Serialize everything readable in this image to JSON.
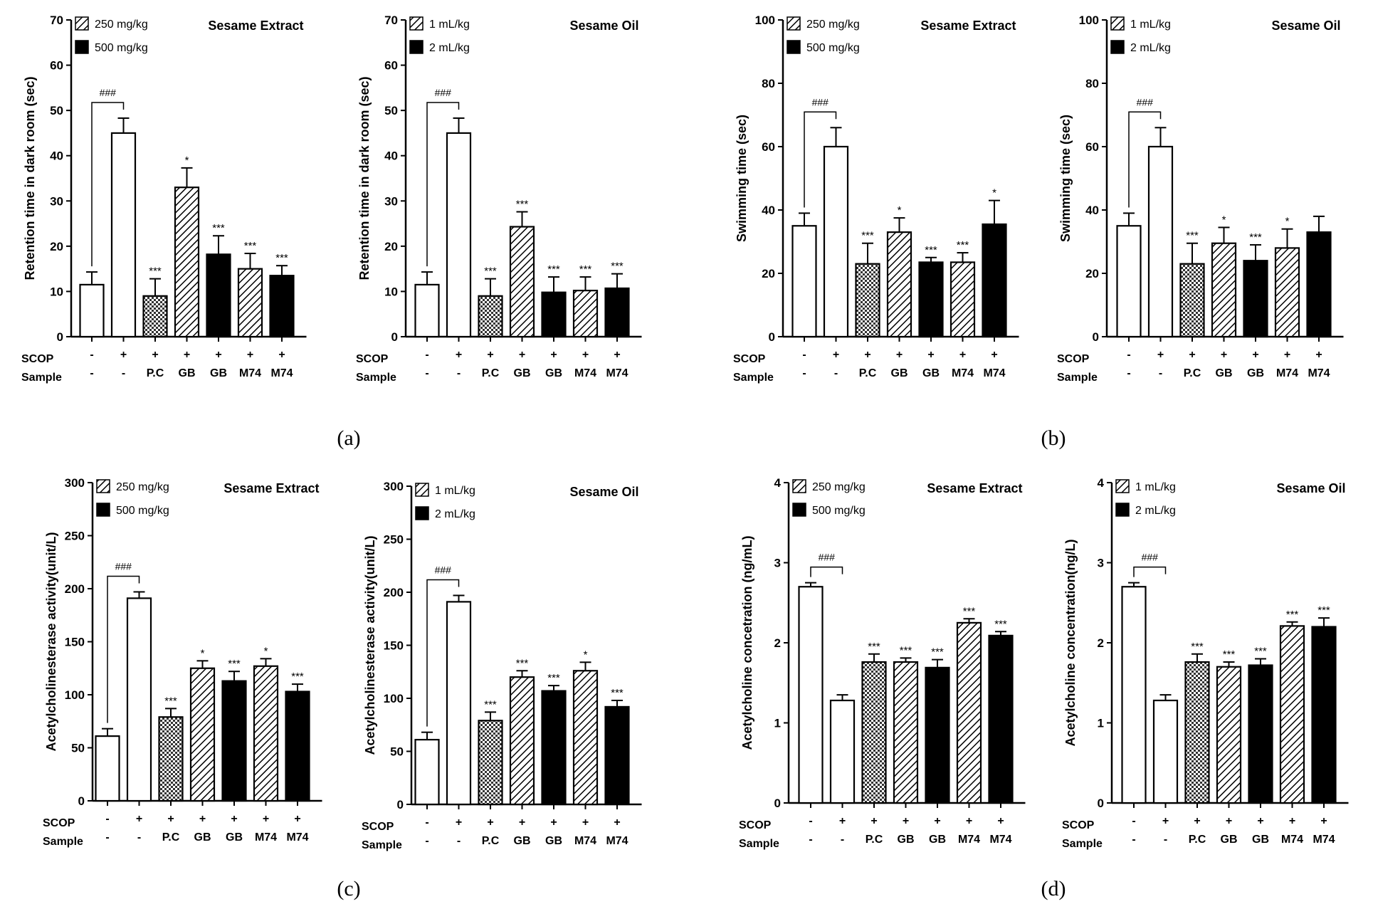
{
  "panel_labels": [
    "(a)",
    "(b)",
    "(c)",
    "(d)"
  ],
  "chart_data": [
    {
      "type": "bar",
      "panel": 0,
      "title": "Sesame Extract",
      "ylabel": "Retention time in dark room  (sec)",
      "ylim": [
        0,
        70
      ],
      "yticks": [
        0,
        10,
        20,
        30,
        40,
        50,
        60,
        70
      ],
      "row_labels": [
        "SCOP",
        "Sample"
      ],
      "scop": [
        "-",
        "+",
        "+",
        "+",
        "+",
        "+",
        "+"
      ],
      "sample": [
        "-",
        "-",
        "P.C",
        "GB",
        "GB",
        "M74",
        "M74"
      ],
      "legend": [
        "250 mg/kg",
        "500 mg/kg"
      ],
      "values": [
        11.5,
        45,
        9,
        33,
        18.2,
        15,
        13.5
      ],
      "errors": [
        2.8,
        3.3,
        3.8,
        4.3,
        4.1,
        3.4,
        2.2
      ],
      "fills": [
        "white",
        "white",
        "checker",
        "hatch",
        "black",
        "hatch",
        "black"
      ],
      "significance": [
        "",
        "",
        "***",
        "*",
        "***",
        "***",
        "***"
      ],
      "bracket_label": "###"
    },
    {
      "type": "bar",
      "panel": 0,
      "title": "Sesame Oil",
      "ylabel": "Retention time in dark room  (sec)",
      "ylim": [
        0,
        70
      ],
      "yticks": [
        0,
        10,
        20,
        30,
        40,
        50,
        60,
        70
      ],
      "row_labels": [
        "SCOP",
        "Sample"
      ],
      "scop": [
        "-",
        "+",
        "+",
        "+",
        "+",
        "+",
        "+"
      ],
      "sample": [
        "-",
        "-",
        "P.C",
        "GB",
        "GB",
        "M74",
        "M74"
      ],
      "legend": [
        "1 mL/kg",
        "2 mL/kg"
      ],
      "values": [
        11.5,
        45,
        9,
        24.3,
        9.8,
        10.2,
        10.7
      ],
      "errors": [
        2.8,
        3.3,
        3.8,
        3.3,
        3.4,
        3,
        3.2
      ],
      "fills": [
        "white",
        "white",
        "checker",
        "hatch",
        "black",
        "hatch",
        "black"
      ],
      "significance": [
        "",
        "",
        "***",
        "***",
        "***",
        "***",
        "***"
      ],
      "bracket_label": "###"
    },
    {
      "type": "bar",
      "panel": 1,
      "title": "Sesame Extract",
      "ylabel": "Swimming time (sec)",
      "ylim": [
        0,
        100
      ],
      "yticks": [
        0,
        20,
        40,
        60,
        80,
        100
      ],
      "row_labels": [
        "SCOP",
        "Sample"
      ],
      "scop": [
        "-",
        "+",
        "+",
        "+",
        "+",
        "+",
        "+"
      ],
      "sample": [
        "-",
        "-",
        "P.C",
        "GB",
        "GB",
        "M74",
        "M74"
      ],
      "legend": [
        "250 mg/kg",
        "500 mg/kg"
      ],
      "values": [
        35,
        60,
        23,
        33,
        23.5,
        23.5,
        35.5
      ],
      "errors": [
        4,
        6,
        6.5,
        4.5,
        1.5,
        3,
        7.5
      ],
      "fills": [
        "white",
        "white",
        "checker",
        "hatch",
        "black",
        "hatch",
        "black"
      ],
      "significance": [
        "",
        "",
        "***",
        "*",
        "***",
        "***",
        "*"
      ],
      "bracket_label": "###"
    },
    {
      "type": "bar",
      "panel": 1,
      "title": "Sesame Oil",
      "ylabel": "Swimming time (sec)",
      "ylim": [
        0,
        100
      ],
      "yticks": [
        0,
        20,
        40,
        60,
        80,
        100
      ],
      "row_labels": [
        "SCOP",
        "Sample"
      ],
      "scop": [
        "-",
        "+",
        "+",
        "+",
        "+",
        "+",
        "+"
      ],
      "sample": [
        "-",
        "-",
        "P.C",
        "GB",
        "GB",
        "M74",
        "M74"
      ],
      "legend": [
        "1 mL/kg",
        "2 mL/kg"
      ],
      "values": [
        35,
        60,
        23,
        29.5,
        24,
        28,
        33
      ],
      "errors": [
        4,
        6,
        6.5,
        5,
        5,
        6,
        5
      ],
      "fills": [
        "white",
        "white",
        "checker",
        "hatch",
        "black",
        "hatch",
        "black"
      ],
      "significance": [
        "",
        "",
        "***",
        "*",
        "***",
        "*",
        ""
      ],
      "bracket_label": "###"
    },
    {
      "type": "bar",
      "panel": 2,
      "title": "Sesame Extract",
      "ylabel": "Acetylcholinesterase activity(unit/L)",
      "ylim": [
        0,
        300
      ],
      "yticks": [
        0,
        50,
        100,
        150,
        200,
        250,
        300
      ],
      "row_labels": [
        "SCOP",
        "Sample"
      ],
      "scop": [
        "-",
        "+",
        "+",
        "+",
        "+",
        "+",
        "+"
      ],
      "sample": [
        "-",
        "-",
        "P.C",
        "GB",
        "GB",
        "M74",
        "M74"
      ],
      "legend": [
        "250 mg/kg",
        "500 mg/kg"
      ],
      "values": [
        61,
        191,
        79,
        125,
        113,
        127,
        103
      ],
      "errors": [
        7,
        6,
        8,
        7,
        9,
        7,
        7
      ],
      "fills": [
        "white",
        "white",
        "checker",
        "hatch",
        "black",
        "hatch",
        "black"
      ],
      "significance": [
        "",
        "",
        "***",
        "*",
        "***",
        "*",
        "***"
      ],
      "bracket_label": "###"
    },
    {
      "type": "bar",
      "panel": 2,
      "title": "Sesame Oil",
      "ylabel": "Acetylcholinesterase activity(unit/L)",
      "ylim": [
        0,
        300
      ],
      "yticks": [
        0,
        50,
        100,
        150,
        200,
        250,
        300
      ],
      "row_labels": [
        "SCOP",
        "Sample"
      ],
      "scop": [
        "-",
        "+",
        "+",
        "+",
        "+",
        "+",
        "+"
      ],
      "sample": [
        "-",
        "-",
        "P.C",
        "GB",
        "GB",
        "M74",
        "M74"
      ],
      "legend": [
        "1 mL/kg",
        "2 mL/kg"
      ],
      "values": [
        61,
        191,
        79,
        120,
        107,
        126,
        92
      ],
      "errors": [
        7,
        6,
        8,
        6,
        5,
        8,
        6
      ],
      "fills": [
        "white",
        "white",
        "checker",
        "hatch",
        "black",
        "hatch",
        "black"
      ],
      "significance": [
        "",
        "",
        "***",
        "***",
        "***",
        "*",
        "***"
      ],
      "bracket_label": "###"
    },
    {
      "type": "bar",
      "panel": 3,
      "title": "Sesame Extract",
      "ylabel": "Acetylcholine concetration  (ng/mL)",
      "ylim": [
        0,
        4
      ],
      "yticks": [
        0,
        1,
        2,
        3,
        4
      ],
      "row_labels": [
        "SCOP",
        "Sample"
      ],
      "scop": [
        "-",
        "+",
        "+",
        "+",
        "+",
        "+",
        "+"
      ],
      "sample": [
        "-",
        "-",
        "P.C",
        "GB",
        "GB",
        "M74",
        "M74"
      ],
      "legend": [
        "250 mg/kg",
        "500 mg/kg"
      ],
      "values": [
        2.7,
        1.28,
        1.76,
        1.76,
        1.69,
        2.25,
        2.09
      ],
      "errors": [
        0.05,
        0.07,
        0.1,
        0.05,
        0.1,
        0.05,
        0.05
      ],
      "fills": [
        "white",
        "white",
        "checker",
        "hatch",
        "black",
        "hatch",
        "black"
      ],
      "significance": [
        "",
        "",
        "***",
        "***",
        "***",
        "***",
        "***"
      ],
      "bracket_label": "###"
    },
    {
      "type": "bar",
      "panel": 3,
      "title": "Sesame Oil",
      "ylabel": "Acetylcholine concentration(ng/L)",
      "ylim": [
        0,
        4
      ],
      "yticks": [
        0,
        1,
        2,
        3,
        4
      ],
      "row_labels": [
        "SCOP",
        "Sample"
      ],
      "scop": [
        "-",
        "+",
        "+",
        "+",
        "+",
        "+",
        "+"
      ],
      "sample": [
        "-",
        "-",
        "P.C",
        "GB",
        "GB",
        "M74",
        "M74"
      ],
      "legend": [
        "1 mL/kg",
        "2 mL/kg"
      ],
      "values": [
        2.7,
        1.28,
        1.76,
        1.7,
        1.72,
        2.21,
        2.2
      ],
      "errors": [
        0.05,
        0.07,
        0.1,
        0.06,
        0.08,
        0.05,
        0.11
      ],
      "fills": [
        "white",
        "white",
        "checker",
        "hatch",
        "black",
        "hatch",
        "black"
      ],
      "significance": [
        "",
        "",
        "***",
        "***",
        "***",
        "***",
        "***"
      ],
      "bracket_label": "###"
    }
  ]
}
